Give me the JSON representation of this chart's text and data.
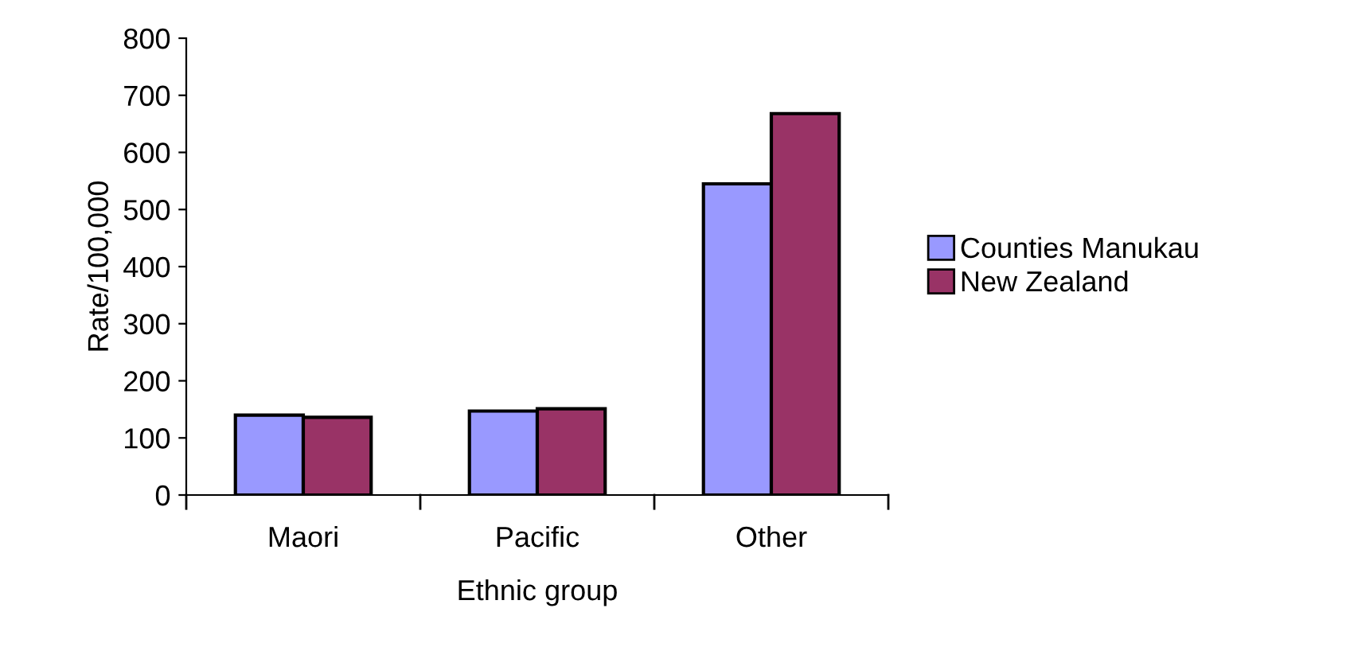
{
  "chart_data": {
    "type": "bar",
    "xlabel": "Ethnic group",
    "ylabel": "Rate/100,000",
    "categories": [
      "Maori",
      "Pacific",
      "Other"
    ],
    "series": [
      {
        "name": "Counties Manukau",
        "color": "#9999ff",
        "values": [
          140,
          147,
          545
        ]
      },
      {
        "name": "New Zealand",
        "color": "#993366",
        "values": [
          136,
          151,
          668
        ]
      }
    ],
    "ylim": [
      0,
      800
    ],
    "yticks": [
      0,
      100,
      200,
      300,
      400,
      500,
      600,
      700,
      800
    ],
    "grid": false,
    "legend": "right"
  }
}
